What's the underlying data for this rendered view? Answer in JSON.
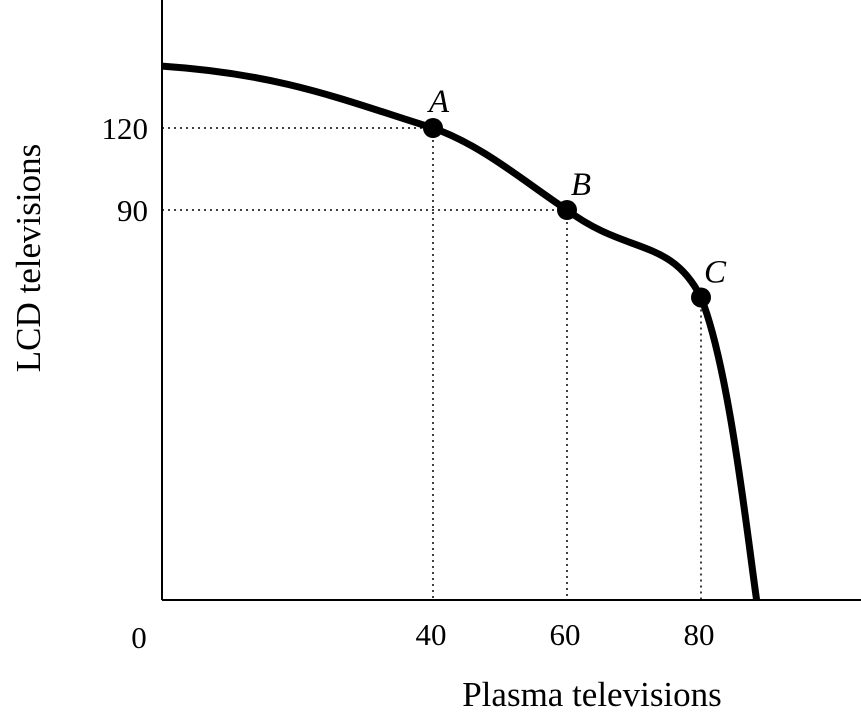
{
  "chart_data": {
    "type": "line",
    "title": "",
    "xlabel": "Plasma televisions",
    "ylabel": "LCD televisions",
    "origin_label": "0",
    "x_ticks": [
      40,
      60,
      80
    ],
    "y_ticks": [
      120,
      90
    ],
    "xlim": [
      0,
      100
    ],
    "ylim": [
      0,
      160
    ],
    "grid": false,
    "points": [
      {
        "label": "A",
        "x": 40,
        "y": 120
      },
      {
        "label": "B",
        "x": 60,
        "y": 90
      },
      {
        "label": "C",
        "x": 80,
        "y": 58
      }
    ],
    "curve": {
      "description": "production possibilities frontier",
      "y_intercept": 143,
      "x_intercept": 88
    },
    "colors": {
      "line": "#000000",
      "background": "#ffffff"
    }
  }
}
